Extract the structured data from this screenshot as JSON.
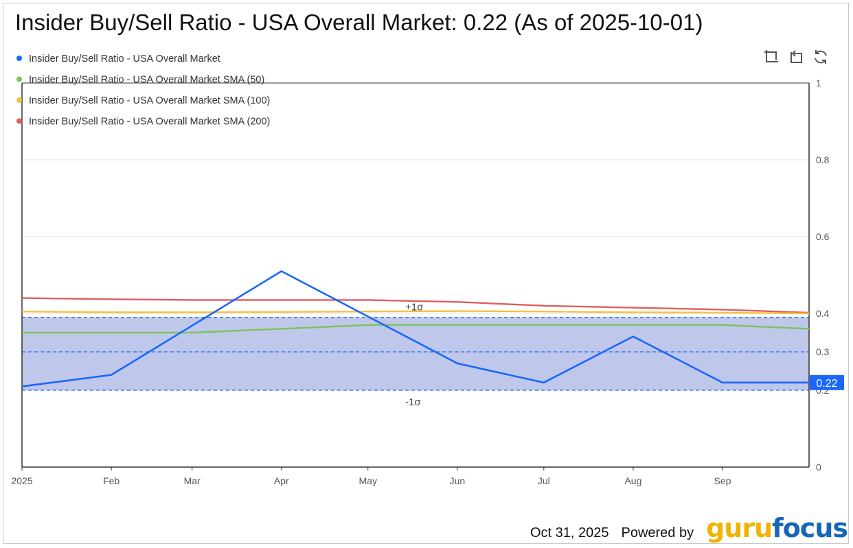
{
  "chart_data": {
    "type": "line",
    "title": "Insider Buy/Sell Ratio - USA Overall Market: 0.22 (As of 2025-10-01)",
    "x_ticks": [
      "2025",
      "Feb",
      "Mar",
      "Apr",
      "May",
      "Jun",
      "Jul",
      "Aug",
      "Sep"
    ],
    "y_ticks": [
      0,
      0.2,
      0.3,
      0.4,
      0.6,
      0.8,
      1
    ],
    "ylim": [
      0,
      1
    ],
    "xlim": [
      "2025-01-01",
      "2025-10-01"
    ],
    "grid": true,
    "legend_position": "top-left",
    "sigma_band": {
      "upper": 0.39,
      "mean": 0.3,
      "lower": 0.2,
      "upper_label": "+1σ",
      "lower_label": "-1σ",
      "fill_color": "#8a9bd8"
    },
    "current_value_label": "0.22",
    "series": [
      {
        "name": "Insider Buy/Sell Ratio - USA Overall Market",
        "color": "#1a66ff",
        "points": [
          [
            "2025-01-01",
            0.21
          ],
          [
            "2025-02-01",
            0.24
          ],
          [
            "2025-04-01",
            0.51
          ],
          [
            "2025-06-01",
            0.27
          ],
          [
            "2025-07-01",
            0.22
          ],
          [
            "2025-08-01",
            0.34
          ],
          [
            "2025-09-01",
            0.22
          ],
          [
            "2025-10-01",
            0.22
          ]
        ]
      },
      {
        "name": "Insider Buy/Sell Ratio - USA Overall Market SMA (50)",
        "color": "#7cc35b",
        "points": [
          [
            "2025-01-01",
            0.35
          ],
          [
            "2025-02-01",
            0.35
          ],
          [
            "2025-03-01",
            0.35
          ],
          [
            "2025-04-01",
            0.36
          ],
          [
            "2025-05-01",
            0.37
          ],
          [
            "2025-06-01",
            0.37
          ],
          [
            "2025-07-01",
            0.37
          ],
          [
            "2025-08-01",
            0.37
          ],
          [
            "2025-09-01",
            0.37
          ],
          [
            "2025-10-01",
            0.36
          ]
        ]
      },
      {
        "name": "Insider Buy/Sell Ratio - USA Overall Market SMA (100)",
        "color": "#f5c23e",
        "points": [
          [
            "2025-01-01",
            0.405
          ],
          [
            "2025-02-01",
            0.403
          ],
          [
            "2025-03-01",
            0.403
          ],
          [
            "2025-04-01",
            0.404
          ],
          [
            "2025-05-01",
            0.405
          ],
          [
            "2025-06-01",
            0.406
          ],
          [
            "2025-07-01",
            0.405
          ],
          [
            "2025-08-01",
            0.403
          ],
          [
            "2025-09-01",
            0.402
          ],
          [
            "2025-10-01",
            0.4
          ]
        ]
      },
      {
        "name": "Insider Buy/Sell Ratio - USA Overall Market SMA (200)",
        "color": "#e25c5c",
        "points": [
          [
            "2025-01-01",
            0.44
          ],
          [
            "2025-02-01",
            0.437
          ],
          [
            "2025-03-01",
            0.435
          ],
          [
            "2025-04-01",
            0.435
          ],
          [
            "2025-05-01",
            0.435
          ],
          [
            "2025-06-01",
            0.43
          ],
          [
            "2025-07-01",
            0.42
          ],
          [
            "2025-08-01",
            0.415
          ],
          [
            "2025-09-01",
            0.41
          ],
          [
            "2025-10-01",
            0.402
          ]
        ]
      }
    ]
  },
  "toolbar": {
    "icons": [
      "zoom-select-icon",
      "zoom-reset-icon",
      "restore-icon"
    ]
  },
  "footer": {
    "date": "Oct 31, 2025",
    "powered_by": "Powered by",
    "brand_part1": "guru",
    "brand_part2": "focus"
  }
}
